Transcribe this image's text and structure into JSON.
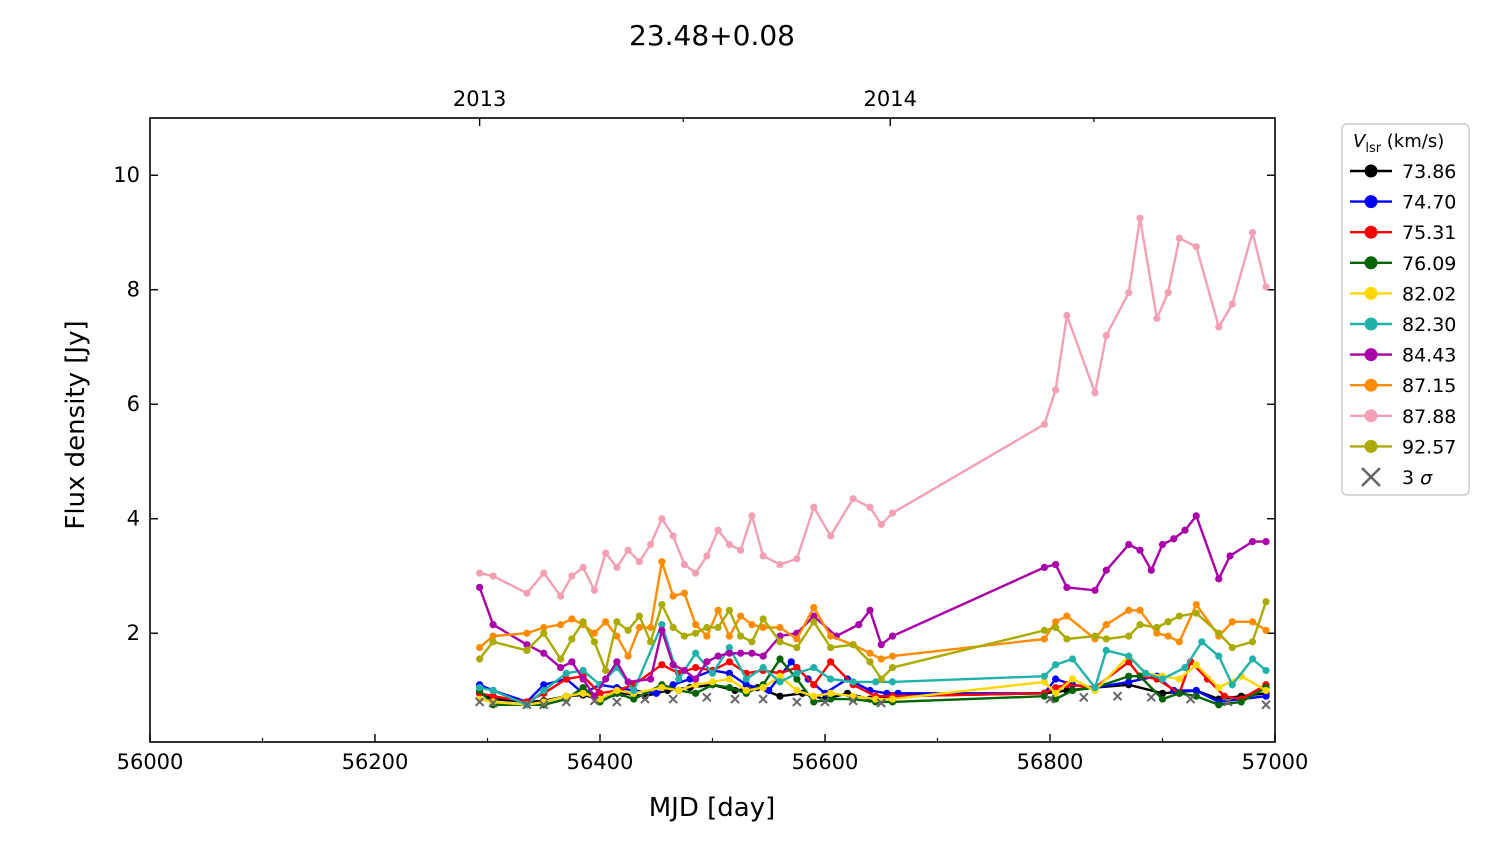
{
  "chart_data": {
    "type": "line",
    "title": "23.48+0.08",
    "xlabel": "MJD [day]",
    "ylabel": "Flux density [Jy]",
    "xlim": [
      56000,
      57000
    ],
    "ylim": [
      0.1,
      11
    ],
    "x_ticks": [
      56000,
      56200,
      56400,
      56600,
      56800,
      57000
    ],
    "x_minor_ticks": [
      56100,
      56300,
      56500,
      56700,
      56900
    ],
    "y_ticks": [
      2,
      4,
      6,
      8,
      10
    ],
    "top_axis": {
      "ticks": [
        {
          "x": 56293,
          "label": "2013"
        },
        {
          "x": 56658,
          "label": "2014"
        }
      ],
      "minor_ticks": [
        56474,
        56839
      ]
    },
    "grid": false,
    "legend": {
      "position": "outside-right",
      "title_main": "V",
      "title_sub": "lsr",
      "title_unit": " (km/s)"
    },
    "series": [
      {
        "name": "73.86",
        "color": "#000000",
        "x": [
          56293,
          56305,
          56335,
          56350,
          56370,
          56385,
          56400,
          56420,
          56440,
          56460,
          56480,
          56500,
          56520,
          56540,
          56560,
          56580,
          56600,
          56620,
          56640,
          56660,
          56795,
          56815,
          56840,
          56870,
          56900,
          56930,
          56950,
          56970,
          56992
        ],
        "y": [
          0.95,
          0.85,
          0.8,
          0.82,
          0.9,
          0.92,
          0.85,
          0.95,
          0.9,
          1.0,
          1.05,
          1.1,
          1.0,
          1.05,
          0.9,
          0.95,
          0.85,
          0.95,
          0.85,
          0.9,
          0.95,
          1.0,
          1.05,
          1.1,
          0.95,
          1.0,
          0.85,
          0.9,
          0.95
        ]
      },
      {
        "name": "74.70",
        "color": "#0000ff",
        "x": [
          56293,
          56305,
          56335,
          56350,
          56370,
          56385,
          56400,
          56415,
          56430,
          56450,
          56465,
          56480,
          56500,
          56515,
          56530,
          56550,
          56570,
          56585,
          56600,
          56620,
          56640,
          56655,
          56665,
          56795,
          56805,
          56820,
          56840,
          56870,
          56895,
          56910,
          56930,
          56950,
          56970,
          56992
        ],
        "y": [
          1.1,
          1.0,
          0.8,
          1.1,
          1.2,
          0.95,
          1.1,
          1.05,
          1.0,
          0.95,
          1.1,
          1.2,
          1.35,
          1.3,
          1.1,
          1.0,
          1.5,
          1.2,
          0.95,
          1.2,
          1.0,
          0.95,
          0.95,
          0.95,
          1.2,
          1.1,
          1.05,
          1.15,
          1.25,
          1.0,
          1.0,
          0.8,
          0.85,
          0.9
        ]
      },
      {
        "name": "75.31",
        "color": "#ff0000",
        "x": [
          56293,
          56305,
          56335,
          56350,
          56370,
          56385,
          56400,
          56415,
          56430,
          56455,
          56470,
          56485,
          56500,
          56515,
          56530,
          56545,
          56560,
          56575,
          56590,
          56605,
          56625,
          56645,
          56660,
          56795,
          56805,
          56815,
          56840,
          56870,
          56880,
          56895,
          56915,
          56925,
          56940,
          56955,
          56970,
          56992
        ],
        "y": [
          0.95,
          0.9,
          0.8,
          0.95,
          1.2,
          1.25,
          0.95,
          1.0,
          1.1,
          1.45,
          1.3,
          1.4,
          1.35,
          1.5,
          1.3,
          1.35,
          1.3,
          1.4,
          1.1,
          1.5,
          1.1,
          0.9,
          0.9,
          0.95,
          1.05,
          1.1,
          1.05,
          1.5,
          1.25,
          1.2,
          0.95,
          1.5,
          1.2,
          0.9,
          0.85,
          1.1
        ]
      },
      {
        "name": "76.09",
        "color": "#006400",
        "x": [
          56293,
          56305,
          56335,
          56350,
          56370,
          56385,
          56400,
          56415,
          56430,
          56455,
          56470,
          56485,
          56500,
          56515,
          56530,
          56545,
          56560,
          56575,
          56590,
          56605,
          56625,
          56645,
          56660,
          56795,
          56805,
          56820,
          56840,
          56870,
          56880,
          56900,
          56915,
          56930,
          56950,
          56970,
          56992
        ],
        "y": [
          1.0,
          0.75,
          0.75,
          0.75,
          0.85,
          1.05,
          0.8,
          0.95,
          0.85,
          1.1,
          1.0,
          0.95,
          1.1,
          1.05,
          0.95,
          1.1,
          1.55,
          1.2,
          0.8,
          0.85,
          0.85,
          0.8,
          0.8,
          0.9,
          0.85,
          1.0,
          1.05,
          1.25,
          1.25,
          0.85,
          0.95,
          0.9,
          0.75,
          0.8,
          1.05
        ]
      },
      {
        "name": "82.02",
        "color": "#ffd700",
        "x": [
          56293,
          56305,
          56335,
          56350,
          56370,
          56385,
          56400,
          56415,
          56430,
          56455,
          56470,
          56485,
          56500,
          56515,
          56530,
          56545,
          56560,
          56575,
          56590,
          56605,
          56625,
          56645,
          56660,
          56795,
          56805,
          56820,
          56840,
          56870,
          56885,
          56900,
          56915,
          56930,
          56950,
          56970,
          56992
        ],
        "y": [
          0.85,
          0.8,
          0.75,
          0.8,
          0.9,
          0.95,
          0.85,
          1.0,
          0.95,
          1.05,
          1.0,
          1.1,
          1.15,
          1.2,
          1.0,
          1.05,
          1.25,
          1.0,
          0.9,
          0.95,
          0.9,
          0.85,
          0.85,
          1.15,
          0.95,
          1.2,
          1.0,
          1.6,
          1.3,
          1.25,
          1.2,
          1.45,
          1.05,
          1.25,
          1.0
        ]
      },
      {
        "name": "82.30",
        "color": "#20b2aa",
        "x": [
          56293,
          56305,
          56335,
          56350,
          56370,
          56385,
          56400,
          56415,
          56430,
          56455,
          56470,
          56485,
          56500,
          56515,
          56530,
          56545,
          56560,
          56575,
          56590,
          56605,
          56625,
          56645,
          56660,
          56795,
          56805,
          56820,
          56840,
          56850,
          56870,
          56885,
          56900,
          56920,
          56935,
          56950,
          56962,
          56980,
          56992
        ],
        "y": [
          1.05,
          1.0,
          0.75,
          1.0,
          1.3,
          1.35,
          1.1,
          1.4,
          1.0,
          2.15,
          1.2,
          1.65,
          1.3,
          1.75,
          1.2,
          1.4,
          1.15,
          1.3,
          1.4,
          1.2,
          1.15,
          1.15,
          1.15,
          1.25,
          1.45,
          1.55,
          1.05,
          1.7,
          1.6,
          1.3,
          1.2,
          1.4,
          1.85,
          1.6,
          1.1,
          1.55,
          1.35
        ]
      },
      {
        "name": "84.43",
        "color": "#aa00aa",
        "x": [
          56293,
          56305,
          56335,
          56350,
          56365,
          56375,
          56385,
          56395,
          56405,
          56415,
          56425,
          56445,
          56455,
          56465,
          56475,
          56485,
          56495,
          56505,
          56515,
          56525,
          56535,
          56545,
          56560,
          56575,
          56590,
          56610,
          56630,
          56640,
          56650,
          56660,
          56795,
          56805,
          56815,
          56840,
          56850,
          56870,
          56880,
          56890,
          56900,
          56910,
          56920,
          56930,
          56950,
          56960,
          56980,
          56992
        ],
        "y": [
          2.8,
          2.15,
          1.8,
          1.65,
          1.4,
          1.5,
          1.2,
          0.9,
          1.2,
          1.5,
          1.15,
          1.2,
          2.05,
          1.45,
          1.35,
          1.2,
          1.5,
          1.6,
          1.65,
          1.65,
          1.65,
          1.6,
          1.95,
          2.0,
          2.3,
          1.95,
          2.15,
          2.4,
          1.8,
          1.95,
          3.15,
          3.2,
          2.8,
          2.75,
          3.1,
          3.55,
          3.45,
          3.1,
          3.55,
          3.65,
          3.8,
          4.05,
          2.95,
          3.35,
          3.6,
          3.6
        ]
      },
      {
        "name": "87.15",
        "color": "#ff8c00",
        "x": [
          56293,
          56305,
          56335,
          56350,
          56365,
          56375,
          56385,
          56395,
          56405,
          56415,
          56425,
          56435,
          56445,
          56455,
          56465,
          56475,
          56485,
          56495,
          56505,
          56515,
          56525,
          56535,
          56545,
          56560,
          56575,
          56590,
          56605,
          56625,
          56640,
          56650,
          56660,
          56795,
          56805,
          56815,
          56840,
          56850,
          56870,
          56880,
          56895,
          56905,
          56915,
          56930,
          56950,
          56962,
          56980,
          56992
        ],
        "y": [
          1.75,
          1.95,
          2.0,
          2.1,
          2.15,
          2.25,
          2.15,
          2.0,
          2.2,
          1.95,
          1.6,
          2.1,
          2.1,
          3.25,
          2.65,
          2.7,
          2.15,
          1.95,
          2.4,
          1.95,
          2.3,
          2.15,
          2.1,
          2.1,
          1.9,
          2.45,
          1.95,
          1.8,
          1.65,
          1.55,
          1.6,
          1.9,
          2.2,
          2.3,
          1.9,
          2.15,
          2.4,
          2.4,
          2.0,
          1.95,
          1.85,
          2.5,
          1.95,
          2.2,
          2.2,
          2.05
        ]
      },
      {
        "name": "87.88",
        "color": "#f4a0b4",
        "x": [
          56293,
          56305,
          56335,
          56350,
          56365,
          56375,
          56385,
          56395,
          56405,
          56415,
          56425,
          56435,
          56445,
          56455,
          56465,
          56475,
          56485,
          56495,
          56505,
          56515,
          56525,
          56535,
          56545,
          56560,
          56575,
          56590,
          56605,
          56625,
          56640,
          56650,
          56660,
          56795,
          56805,
          56815,
          56840,
          56850,
          56870,
          56880,
          56895,
          56905,
          56915,
          56930,
          56950,
          56962,
          56980,
          56992
        ],
        "y": [
          3.05,
          3.0,
          2.7,
          3.05,
          2.65,
          3.0,
          3.15,
          2.75,
          3.4,
          3.15,
          3.45,
          3.25,
          3.55,
          4.0,
          3.7,
          3.2,
          3.05,
          3.35,
          3.8,
          3.55,
          3.45,
          4.05,
          3.35,
          3.2,
          3.3,
          4.2,
          3.7,
          4.35,
          4.2,
          3.9,
          4.1,
          5.65,
          6.25,
          7.55,
          6.2,
          7.2,
          7.95,
          9.25,
          7.5,
          7.95,
          8.9,
          8.75,
          7.35,
          7.75,
          9.0,
          8.05
        ]
      },
      {
        "name": "92.57",
        "color": "#aaaa00",
        "x": [
          56293,
          56305,
          56335,
          56350,
          56365,
          56375,
          56385,
          56395,
          56405,
          56415,
          56425,
          56435,
          56445,
          56455,
          56465,
          56475,
          56485,
          56495,
          56505,
          56515,
          56525,
          56535,
          56545,
          56560,
          56575,
          56590,
          56605,
          56625,
          56640,
          56650,
          56660,
          56795,
          56805,
          56815,
          56840,
          56850,
          56870,
          56880,
          56895,
          56905,
          56915,
          56930,
          56950,
          56962,
          56980,
          56992
        ],
        "y": [
          1.55,
          1.85,
          1.7,
          2.0,
          1.55,
          1.9,
          2.2,
          1.85,
          1.35,
          2.2,
          2.05,
          2.3,
          1.85,
          2.5,
          2.1,
          1.95,
          2.0,
          2.1,
          2.1,
          2.4,
          1.95,
          1.85,
          2.25,
          1.85,
          1.75,
          2.2,
          1.75,
          1.8,
          1.5,
          1.2,
          1.4,
          2.05,
          2.1,
          1.9,
          1.95,
          1.9,
          1.95,
          2.15,
          2.1,
          2.2,
          2.3,
          2.35,
          2.0,
          1.75,
          1.85,
          2.55
        ]
      }
    ],
    "sigma_limits": {
      "name": "3 σ",
      "label_prefix": "3 ",
      "label_symbol": "σ",
      "color": "#666666",
      "x": [
        56293,
        56305,
        56335,
        56350,
        56370,
        56395,
        56415,
        56440,
        56465,
        56495,
        56520,
        56545,
        56575,
        56600,
        56625,
        56650,
        56800,
        56830,
        56860,
        56890,
        56925,
        56958,
        56992
      ],
      "y": [
        0.8,
        0.78,
        0.75,
        0.75,
        0.8,
        0.82,
        0.8,
        0.85,
        0.85,
        0.88,
        0.85,
        0.85,
        0.8,
        0.8,
        0.82,
        0.78,
        0.85,
        0.88,
        0.9,
        0.88,
        0.85,
        0.8,
        0.75
      ]
    }
  }
}
